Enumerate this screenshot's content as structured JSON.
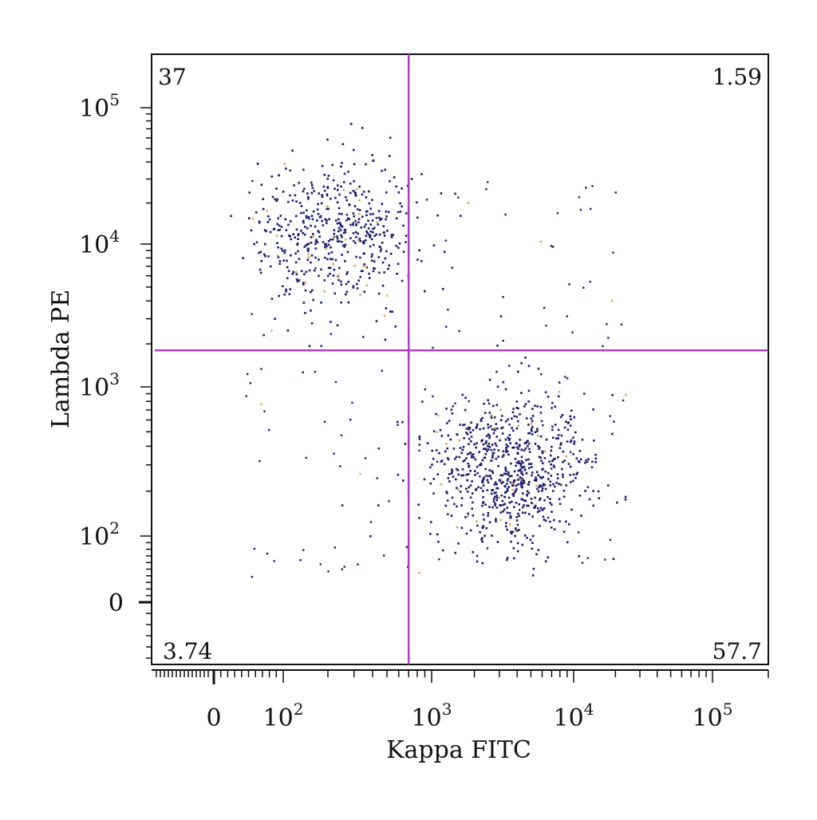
{
  "chart_data": {
    "type": "scatter",
    "title": "",
    "xlabel": "Kappa FITC",
    "ylabel": "Lambda PE",
    "xscale": "biexponential",
    "yscale": "biexponential",
    "x_tick_labels": [
      {
        "value": 0,
        "base": "0",
        "exp": ""
      },
      {
        "value": 100,
        "base": "10",
        "exp": "2"
      },
      {
        "value": 1000,
        "base": "10",
        "exp": "3"
      },
      {
        "value": 10000,
        "base": "10",
        "exp": "4"
      },
      {
        "value": 100000,
        "base": "10",
        "exp": "5"
      }
    ],
    "y_tick_labels": [
      {
        "value": 0,
        "base": "0",
        "exp": ""
      },
      {
        "value": 100,
        "base": "10",
        "exp": "2"
      },
      {
        "value": 1000,
        "base": "10",
        "exp": "3"
      },
      {
        "value": 10000,
        "base": "10",
        "exp": "4"
      },
      {
        "value": 100000,
        "base": "10",
        "exp": "5"
      }
    ],
    "gate": {
      "x": 700,
      "y": 1800,
      "color": "#b03cc8"
    },
    "quadrants": {
      "top_left": "37",
      "top_right": "1.59",
      "bottom_left": "3.74",
      "bottom_right": "57.7"
    },
    "clusters": [
      {
        "name_hint": "lambda-positive",
        "center_log_x": 2.35,
        "center_log_y": 4.1,
        "count": 520
      },
      {
        "name_hint": "kappa-positive",
        "center_log_x": 3.55,
        "center_log_y": 2.45,
        "count": 760
      }
    ],
    "point_color": "#1a1a6e",
    "grid": false,
    "legend": "none"
  }
}
